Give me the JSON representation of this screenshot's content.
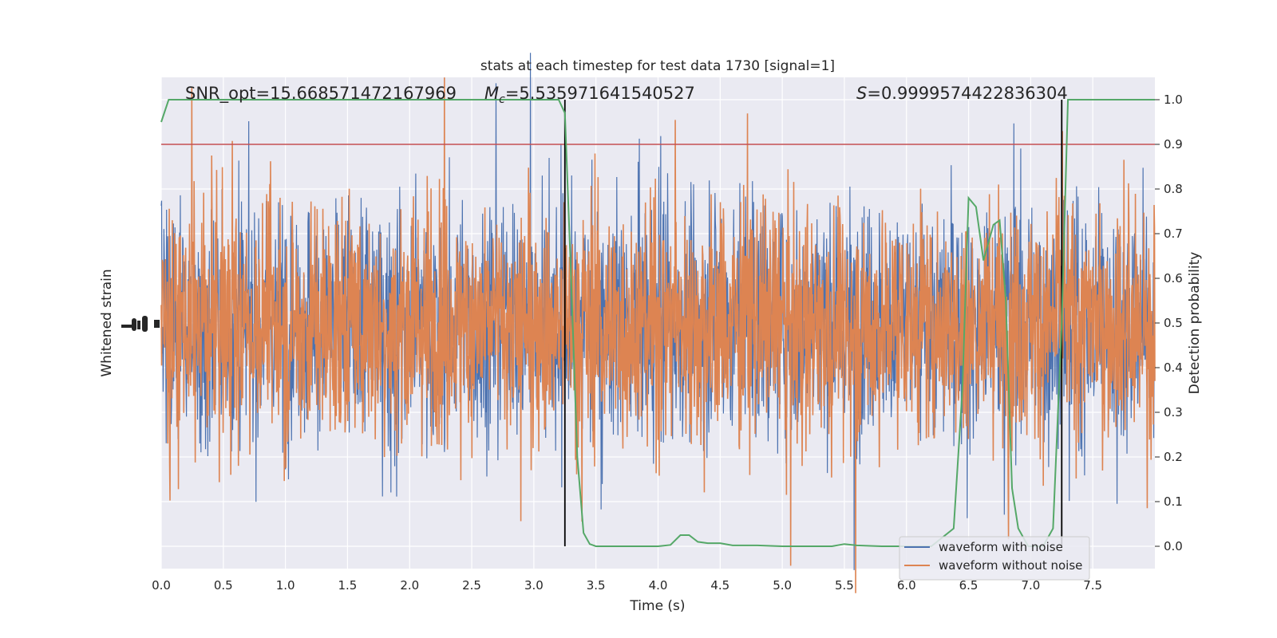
{
  "chart_data": {
    "type": "line",
    "title": "stats at each timestep for test data 1730 [signal=1]",
    "xlabel": "Time (s)",
    "ylabel_left": "Whitened strain",
    "ylabel_right": "Detection probability",
    "xlim": [
      0.0,
      8.0
    ],
    "ylim_right": [
      -0.05,
      1.05
    ],
    "x_ticks": [
      "0.0",
      "0.5",
      "1.0",
      "1.5",
      "2.0",
      "2.5",
      "3.0",
      "3.5",
      "4.0",
      "4.5",
      "5.0",
      "5.5",
      "6.0",
      "6.5",
      "7.0",
      "7.5"
    ],
    "y_right_ticks": [
      "0.0",
      "0.1",
      "0.2",
      "0.3",
      "0.4",
      "0.5",
      "0.6",
      "0.7",
      "0.8",
      "0.9",
      "1.0"
    ],
    "grid": true,
    "legend_position": "lower-right",
    "annotations": {
      "snr": "SNR_opt=15.668571472167969",
      "mc_prefix": "M",
      "mc_sub": "c",
      "mc_value": "=5.535971641540527",
      "s_prefix": "S",
      "s_value": "=0.9999574422836304"
    },
    "threshold": 0.9,
    "vertical_lines_x": [
      3.25,
      7.25
    ],
    "series": [
      {
        "name": "waveform with noise",
        "color": "#4c72b0",
        "kind": "strain",
        "amplitude_approx": 0.55
      },
      {
        "name": "waveform without noise",
        "color": "#dd8452",
        "kind": "strain",
        "amplitude_approx": 0.55
      },
      {
        "name": "",
        "color": "#55a868",
        "kind": "detection_probability",
        "x": [
          0.0,
          0.06,
          0.5,
          1.0,
          1.5,
          2.0,
          2.5,
          3.0,
          3.2,
          3.25,
          3.3,
          3.35,
          3.4,
          3.45,
          3.5,
          3.6,
          3.8,
          4.0,
          4.1,
          4.18,
          4.25,
          4.32,
          4.4,
          4.5,
          4.6,
          4.8,
          5.0,
          5.2,
          5.4,
          5.5,
          5.6,
          5.8,
          6.0,
          6.2,
          6.38,
          6.45,
          6.5,
          6.56,
          6.62,
          6.7,
          6.75,
          6.8,
          6.85,
          6.9,
          6.98,
          7.1,
          7.18,
          7.25,
          7.3,
          7.5,
          8.0
        ],
        "y": [
          0.95,
          1.0,
          1.0,
          1.0,
          1.0,
          1.0,
          1.0,
          1.0,
          1.0,
          0.97,
          0.6,
          0.2,
          0.03,
          0.005,
          0.0,
          0.0,
          0.0,
          0.0,
          0.003,
          0.025,
          0.025,
          0.01,
          0.007,
          0.007,
          0.002,
          0.002,
          0.0,
          0.0,
          0.0,
          0.005,
          0.002,
          0.0,
          0.0,
          0.0,
          0.04,
          0.35,
          0.78,
          0.76,
          0.64,
          0.72,
          0.73,
          0.55,
          0.13,
          0.04,
          0.0,
          0.0,
          0.04,
          0.5,
          1.0,
          1.0,
          1.0
        ]
      }
    ]
  }
}
